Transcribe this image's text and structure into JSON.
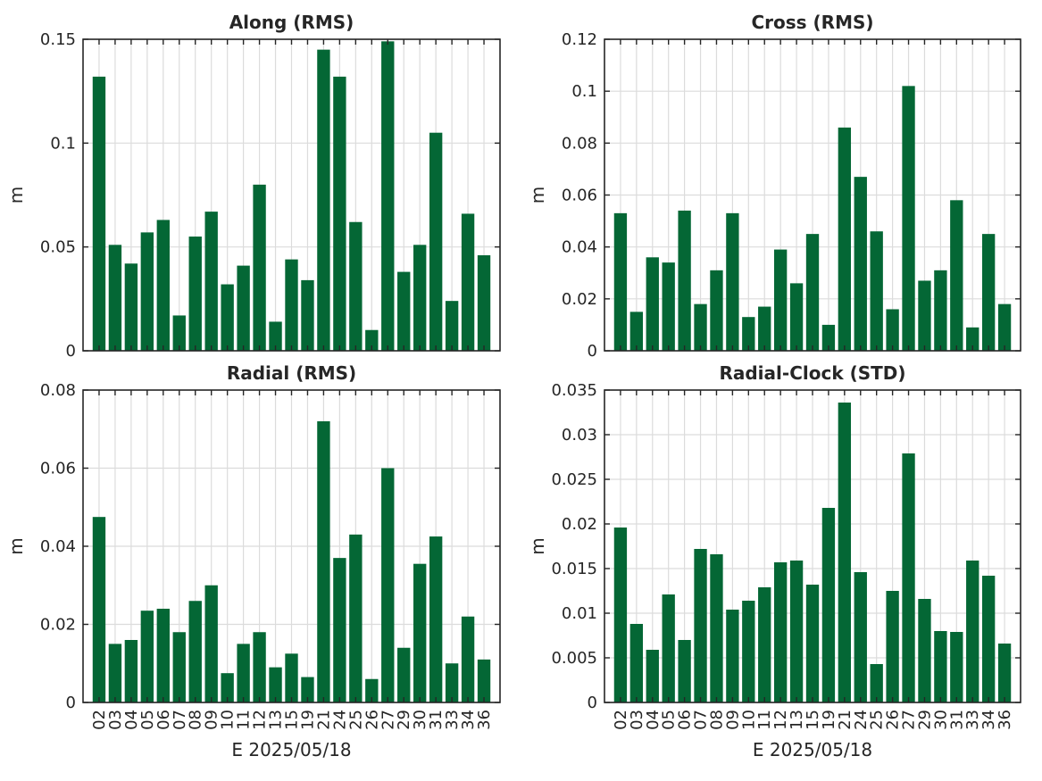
{
  "colors": {
    "bar": "#046735",
    "axis": "#262626",
    "grid": "#dcdcdc"
  },
  "chart_data": [
    {
      "type": "bar",
      "title": "Along (RMS)",
      "xlabel": "",
      "ylabel": "m",
      "ylim": [
        0,
        0.15
      ],
      "yticks": [
        "0",
        "0.05",
        "0.1",
        "0.15"
      ],
      "categories": [
        "02",
        "03",
        "04",
        "05",
        "06",
        "07",
        "08",
        "09",
        "10",
        "11",
        "12",
        "13",
        "15",
        "19",
        "21",
        "24",
        "25",
        "26",
        "27",
        "29",
        "30",
        "31",
        "33",
        "34",
        "36"
      ],
      "values": [
        0.132,
        0.051,
        0.042,
        0.057,
        0.063,
        0.017,
        0.055,
        0.067,
        0.032,
        0.041,
        0.08,
        0.014,
        0.044,
        0.034,
        0.145,
        0.132,
        0.062,
        0.01,
        0.149,
        0.038,
        0.051,
        0.105,
        0.024,
        0.066,
        0.046
      ],
      "grid": true
    },
    {
      "type": "bar",
      "title": "Cross (RMS)",
      "xlabel": "",
      "ylabel": "m",
      "ylim": [
        0,
        0.12
      ],
      "yticks": [
        "0",
        "0.02",
        "0.04",
        "0.06",
        "0.08",
        "0.1",
        "0.12"
      ],
      "categories": [
        "02",
        "03",
        "04",
        "05",
        "06",
        "07",
        "08",
        "09",
        "10",
        "11",
        "12",
        "13",
        "15",
        "19",
        "21",
        "24",
        "25",
        "26",
        "27",
        "29",
        "30",
        "31",
        "33",
        "34",
        "36"
      ],
      "values": [
        0.053,
        0.015,
        0.036,
        0.034,
        0.054,
        0.018,
        0.031,
        0.053,
        0.013,
        0.017,
        0.039,
        0.026,
        0.045,
        0.01,
        0.086,
        0.067,
        0.046,
        0.016,
        0.102,
        0.027,
        0.031,
        0.058,
        0.009,
        0.045,
        0.018
      ],
      "grid": true
    },
    {
      "type": "bar",
      "title": "Radial (RMS)",
      "xlabel": "E 2025/05/18",
      "ylabel": "m",
      "ylim": [
        0,
        0.08
      ],
      "yticks": [
        "0",
        "0.02",
        "0.04",
        "0.06",
        "0.08"
      ],
      "categories": [
        "02",
        "03",
        "04",
        "05",
        "06",
        "07",
        "08",
        "09",
        "10",
        "11",
        "12",
        "13",
        "15",
        "19",
        "21",
        "24",
        "25",
        "26",
        "27",
        "29",
        "30",
        "31",
        "33",
        "34",
        "36"
      ],
      "values": [
        0.0475,
        0.015,
        0.016,
        0.0235,
        0.024,
        0.018,
        0.026,
        0.03,
        0.0075,
        0.015,
        0.018,
        0.009,
        0.0125,
        0.0065,
        0.072,
        0.037,
        0.043,
        0.006,
        0.06,
        0.014,
        0.0355,
        0.0425,
        0.01,
        0.022,
        0.011
      ],
      "grid": true
    },
    {
      "type": "bar",
      "title": "Radial-Clock (STD)",
      "xlabel": "E 2025/05/18",
      "ylabel": "m",
      "ylim": [
        0,
        0.035
      ],
      "yticks": [
        "0",
        "0.005",
        "0.01",
        "0.015",
        "0.02",
        "0.025",
        "0.03",
        "0.035"
      ],
      "categories": [
        "02",
        "03",
        "04",
        "05",
        "06",
        "07",
        "08",
        "09",
        "10",
        "11",
        "12",
        "13",
        "15",
        "19",
        "21",
        "24",
        "25",
        "26",
        "27",
        "29",
        "30",
        "31",
        "33",
        "34",
        "36"
      ],
      "values": [
        0.0196,
        0.0088,
        0.0059,
        0.0121,
        0.007,
        0.0172,
        0.0166,
        0.0104,
        0.0114,
        0.0129,
        0.0157,
        0.0159,
        0.0132,
        0.0218,
        0.0336,
        0.0146,
        0.0043,
        0.0125,
        0.0279,
        0.0116,
        0.008,
        0.0079,
        0.0159,
        0.0142,
        0.0066
      ],
      "grid": true
    }
  ]
}
